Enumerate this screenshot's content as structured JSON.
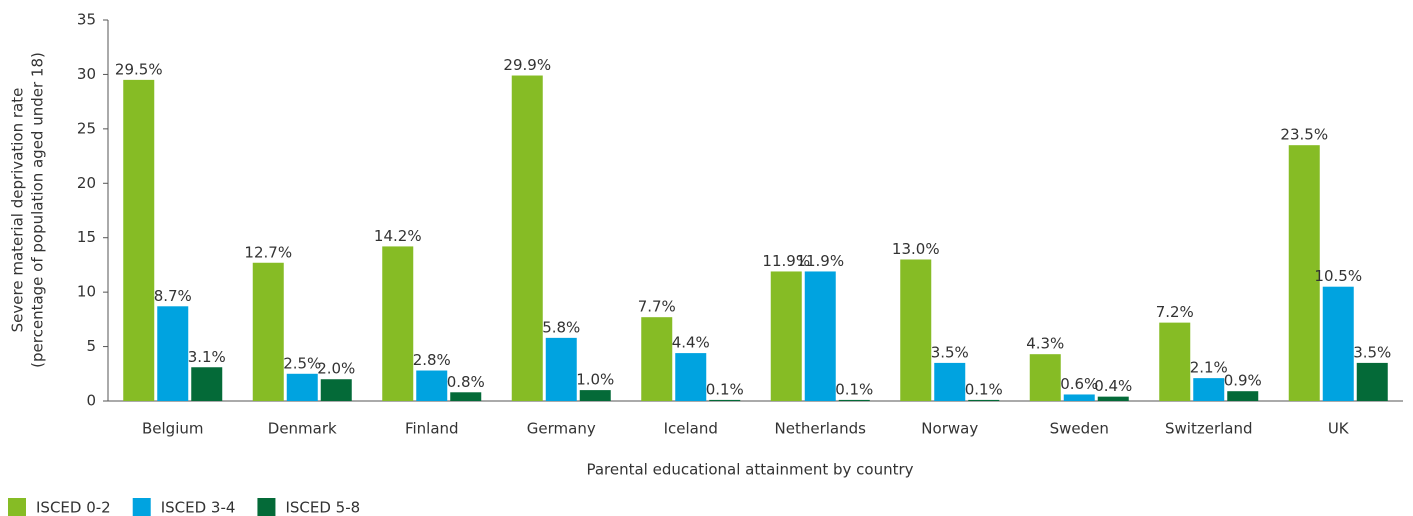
{
  "chart_data": {
    "type": "bar",
    "x_label": "Parental educational attainment by country",
    "y_label": [
      "Severe material deprivation rate",
      "(percentage of population aged under 18)"
    ],
    "categories": [
      "Belgium",
      "Denmark",
      "Finland",
      "Germany",
      "Iceland",
      "Netherlands",
      "Norway",
      "Sweden",
      "Switzerland",
      "UK"
    ],
    "series": [
      {
        "name": "ISCED 0-2",
        "color": "#86bc25",
        "values": [
          29.5,
          12.7,
          14.2,
          29.9,
          7.7,
          11.9,
          13.0,
          4.3,
          7.2,
          23.5
        ],
        "value_labels": [
          "29.5%",
          "12.7%",
          "14.2%",
          "29.9%",
          "7.7%",
          "11.9%",
          "13.0%",
          "4.3%",
          "7.2%",
          "23.5%"
        ]
      },
      {
        "name": "ISCED 3-4",
        "color": "#00a3e0",
        "values": [
          8.7,
          2.5,
          2.8,
          5.8,
          4.4,
          11.9,
          3.5,
          0.6,
          2.1,
          10.5
        ],
        "value_labels": [
          "8.7%",
          "2.5%",
          "2.8%",
          "5.8%",
          "4.4%",
          "11.9%",
          "3.5%",
          "0.6%",
          "2.1%",
          "10.5%"
        ]
      },
      {
        "name": "ISCED 5-8",
        "color": "#046a38",
        "values": [
          3.1,
          2.0,
          0.8,
          1.0,
          0.1,
          0.1,
          0.1,
          0.4,
          0.9,
          3.5
        ],
        "value_labels": [
          "3.1%",
          "2.0%",
          "0.8%",
          "1.0%",
          "0.1%",
          "0.1%",
          "0.1%",
          "0.4%",
          "0.9%",
          "3.5%"
        ]
      }
    ],
    "ylim": [
      0,
      35
    ],
    "yticks": [
      0,
      5,
      10,
      15,
      20,
      25,
      30,
      35
    ],
    "grid": false,
    "legend": "bottom-left"
  }
}
